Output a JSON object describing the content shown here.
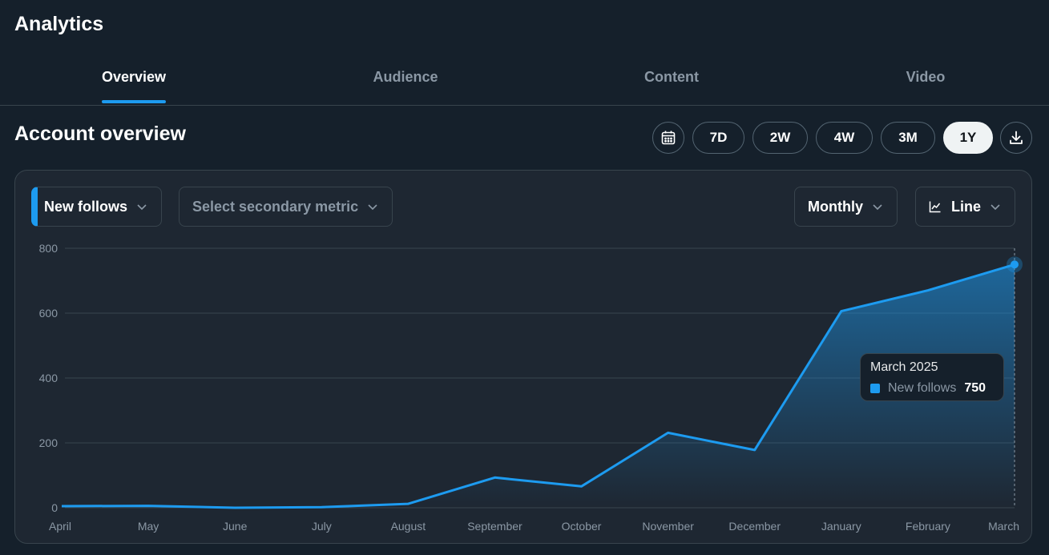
{
  "header": {
    "title": "Analytics"
  },
  "tabs": [
    {
      "label": "Overview",
      "active": true
    },
    {
      "label": "Audience",
      "active": false
    },
    {
      "label": "Content",
      "active": false
    },
    {
      "label": "Video",
      "active": false
    }
  ],
  "overview": {
    "title": "Account overview",
    "calendar_icon": "calendar-icon",
    "download_icon": "download-icon",
    "ranges": [
      "7D",
      "2W",
      "4W",
      "3M",
      "1Y"
    ],
    "active_range": "1Y"
  },
  "controls": {
    "primary_metric": "New follows",
    "secondary_metric_placeholder": "Select secondary metric",
    "interval": "Monthly",
    "chart_type": "Line",
    "chart_type_icon": "line-chart-icon"
  },
  "tooltip": {
    "title": "March 2025",
    "series": "New follows",
    "value": "750",
    "swatch_color": "#1d9bf0"
  },
  "colors": {
    "accent": "#1d9bf0",
    "background": "#15202b",
    "card": "#1e2732"
  },
  "chart_data": {
    "type": "area",
    "title": "",
    "xlabel": "",
    "ylabel": "",
    "categories": [
      "April",
      "May",
      "June",
      "July",
      "August",
      "September",
      "October",
      "November",
      "December",
      "January",
      "February",
      "March"
    ],
    "series": [
      {
        "name": "New follows",
        "values": [
          5,
          6,
          0,
          2,
          12,
          93,
          66,
          231,
          178,
          606,
          670,
          750
        ]
      }
    ],
    "ylim": [
      0,
      800
    ],
    "yticks": [
      0,
      200,
      400,
      600,
      800
    ],
    "grid": true,
    "highlighted_point": "March"
  }
}
